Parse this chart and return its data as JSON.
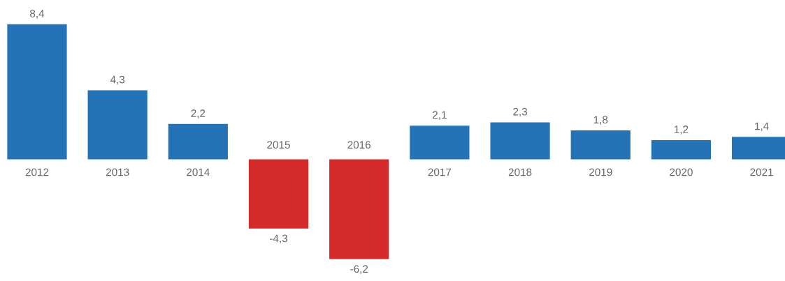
{
  "chart_data": {
    "type": "bar",
    "categories": [
      "2012",
      "2013",
      "2014",
      "2015",
      "2016",
      "2017",
      "2018",
      "2019",
      "2020",
      "2021"
    ],
    "values": [
      8.4,
      4.3,
      2.2,
      -4.3,
      -6.2,
      2.1,
      2.3,
      1.8,
      1.2,
      1.4
    ],
    "colors": [
      "#2373b6",
      "#2373b6",
      "#2373b6",
      "#d42a2a",
      "#d42a2a",
      "#2373b6",
      "#2373b6",
      "#2373b6",
      "#2373b6",
      "#2373b6"
    ],
    "value_labels": [
      "8,4",
      "4,3",
      "2,2",
      "-4,3",
      "-6,2",
      "2,1",
      "2,3",
      "1,8",
      "1,2",
      "1,4"
    ]
  }
}
